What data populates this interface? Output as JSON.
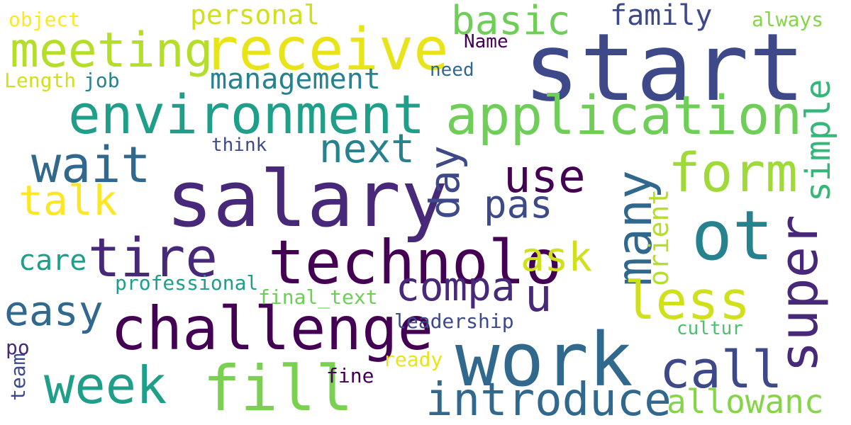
{
  "cloud": {
    "background": "#ffffff",
    "palette": [
      "#440154",
      "#482878",
      "#3e4989",
      "#31688e",
      "#26828e",
      "#1f9e89",
      "#35b779",
      "#6ece58",
      "#b5de2b",
      "#fde725"
    ],
    "words": [
      {
        "id": "start",
        "text": "start",
        "color": "#3e4989"
      },
      {
        "id": "salary",
        "text": "salary",
        "color": "#482878"
      },
      {
        "id": "work",
        "text": "work",
        "color": "#31688e"
      },
      {
        "id": "challenge",
        "text": "challenge",
        "color": "#440154"
      },
      {
        "id": "technolo",
        "text": "technolo",
        "color": "#440154"
      },
      {
        "id": "receive",
        "text": "receive",
        "color": "#e8e419"
      },
      {
        "id": "application",
        "text": "application",
        "color": "#6ece58"
      },
      {
        "id": "environment",
        "text": "environment",
        "color": "#1f9e89"
      },
      {
        "id": "meeting",
        "text": "meeting",
        "color": "#b5de2b"
      },
      {
        "id": "ot",
        "text": "ot",
        "color": "#26828e"
      },
      {
        "id": "fill",
        "text": "fill",
        "color": "#7ad151"
      },
      {
        "id": "week",
        "text": "week",
        "color": "#1f9e89"
      },
      {
        "id": "tire",
        "text": "tire",
        "color": "#482878"
      },
      {
        "id": "introduce",
        "text": "introduce",
        "color": "#31688e"
      },
      {
        "id": "call",
        "text": "call",
        "color": "#3e4989"
      },
      {
        "id": "super",
        "text": "super",
        "color": "#482878"
      },
      {
        "id": "many",
        "text": "many",
        "color": "#31688e"
      },
      {
        "id": "wait",
        "text": "wait",
        "color": "#31688e"
      },
      {
        "id": "form",
        "text": "form",
        "color": "#a0da39"
      },
      {
        "id": "less",
        "text": "less",
        "color": "#d0e11c"
      },
      {
        "id": "use",
        "text": "use",
        "color": "#440154"
      },
      {
        "id": "easy",
        "text": "easy",
        "color": "#31688e"
      },
      {
        "id": "next",
        "text": "next",
        "color": "#26828e"
      },
      {
        "id": "compa",
        "text": "compa",
        "color": "#482878"
      },
      {
        "id": "basic",
        "text": "basic",
        "color": "#6ece58"
      },
      {
        "id": "talk",
        "text": "talk",
        "color": "#fde725"
      },
      {
        "id": "day",
        "text": "day",
        "color": "#3e4989"
      },
      {
        "id": "simple",
        "text": "simple",
        "color": "#35b779"
      },
      {
        "id": "pas",
        "text": "pas",
        "color": "#3e4989"
      },
      {
        "id": "u",
        "text": "u",
        "color": "#482878"
      },
      {
        "id": "ask",
        "text": "ask",
        "color": "#d0e11c"
      },
      {
        "id": "allowanc",
        "text": "allowanc",
        "color": "#86d549"
      },
      {
        "id": "management",
        "text": "management",
        "color": "#26828e"
      },
      {
        "id": "family",
        "text": "family",
        "color": "#3e4989"
      },
      {
        "id": "orient",
        "text": "orient",
        "color": "#b5de2b"
      },
      {
        "id": "personal",
        "text": "personal",
        "color": "#d0e11c"
      },
      {
        "id": "care",
        "text": "care",
        "color": "#1f9e89"
      },
      {
        "id": "professional",
        "text": "professional",
        "color": "#1f9e89"
      },
      {
        "id": "leadership",
        "text": "leadership",
        "color": "#3e4989"
      },
      {
        "id": "final_text",
        "text": "final_text",
        "color": "#6ece58"
      },
      {
        "id": "job",
        "text": "job",
        "color": "#26828e"
      },
      {
        "id": "length",
        "text": "Length",
        "color": "#d0e11c"
      },
      {
        "id": "object",
        "text": "object",
        "color": "#fde725"
      },
      {
        "id": "always",
        "text": "always",
        "color": "#86d549"
      },
      {
        "id": "name",
        "text": "Name",
        "color": "#440154"
      },
      {
        "id": "need",
        "text": "need",
        "color": "#31688e"
      },
      {
        "id": "think",
        "text": "think",
        "color": "#3e4989"
      },
      {
        "id": "cultur",
        "text": "cultur",
        "color": "#4ac16d"
      },
      {
        "id": "ready",
        "text": "ready",
        "color": "#e8e419"
      },
      {
        "id": "fine",
        "text": "fine",
        "color": "#440154"
      },
      {
        "id": "po",
        "text": "po",
        "color": "#482878"
      },
      {
        "id": "team",
        "text": "team",
        "color": "#3e4989"
      }
    ]
  }
}
